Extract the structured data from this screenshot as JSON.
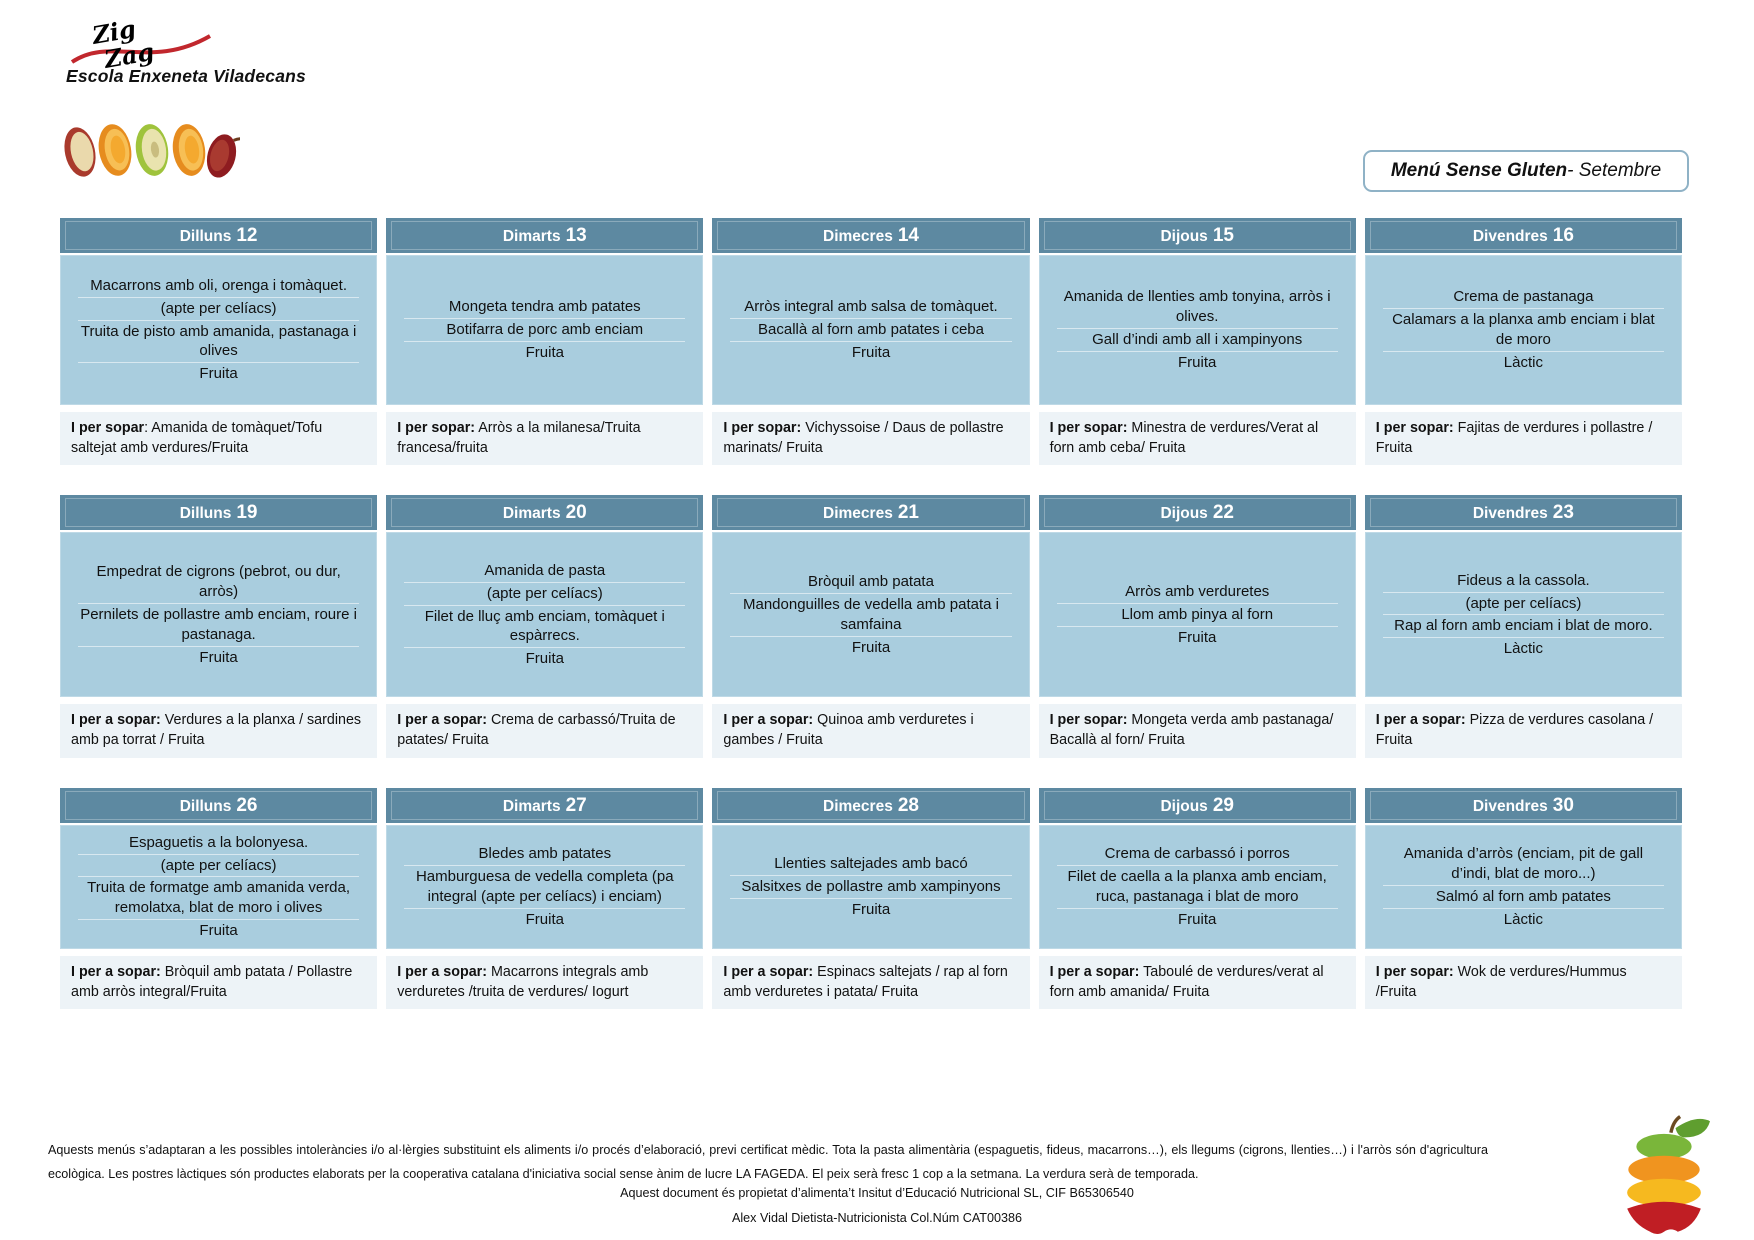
{
  "colors": {
    "header_bg": "#5d89a1",
    "cell_bg": "#a9cdde",
    "dinner_bg": "#edf3f7",
    "accent_border": "#8fb2c6"
  },
  "page": {
    "brand": "ZigZag",
    "school": "Escola Enxeneta Viladecans",
    "title_bold": "Menú Sense Gluten",
    "title_regular": "- Setembre"
  },
  "weeks": [
    {
      "days": [
        {
          "day": "Dilluns",
          "date": "12",
          "dishes": [
            "Macarrons amb oli, orenga i tomàquet.",
            "(apte per celíacs)",
            "Truita de pisto amb amanida, pastanaga i olives",
            "Fruita"
          ],
          "dinner_label": "I per sopar",
          "dinner_text": ": Amanida de tomàquet/Tofu saltejat amb verdures/Fruita"
        },
        {
          "day": "Dimarts",
          "date": "13",
          "dishes": [
            "Mongeta tendra amb patates",
            "Botifarra de porc amb enciam",
            "Fruita"
          ],
          "dinner_label": "I per sopar:",
          "dinner_text": " Arròs a la milanesa/Truita francesa/fruita"
        },
        {
          "day": "Dimecres",
          "date": "14",
          "dishes": [
            "Arròs integral amb salsa de tomàquet.",
            "Bacallà al forn amb patates i ceba",
            "Fruita"
          ],
          "dinner_label": "I per sopar:",
          "dinner_text": " Vichyssoise / Daus de pollastre marinats/ Fruita"
        },
        {
          "day": "Dijous",
          "date": "15",
          "dishes": [
            "Amanida de llenties amb tonyina, arròs i olives.",
            "Gall d’indi amb all i xampinyons",
            "Fruita"
          ],
          "dinner_label": "I per sopar:",
          "dinner_text": " Minestra de verdures/Verat al forn amb ceba/ Fruita"
        },
        {
          "day": "Divendres",
          "date": "16",
          "dishes": [
            "Crema de pastanaga",
            "Calamars a la planxa amb enciam i blat de moro",
            "Làctic"
          ],
          "dinner_label": "I per sopar:",
          "dinner_text": " Fajitas de verdures i pollastre / Fruita"
        }
      ]
    },
    {
      "days": [
        {
          "day": "Dilluns",
          "date": "19",
          "dishes": [
            "Empedrat de cigrons (pebrot, ou dur, arròs)",
            "Pernilets de pollastre amb enciam, roure i pastanaga.",
            "Fruita"
          ],
          "dinner_label": "I per a sopar:",
          "dinner_text": " Verdures a la planxa / sardines amb pa torrat / Fruita"
        },
        {
          "day": "Dimarts",
          "date": "20",
          "dishes": [
            "Amanida de pasta",
            "(apte per celíacs)",
            "Filet de lluç amb enciam, tomàquet i espàrrecs.",
            "Fruita"
          ],
          "dinner_label": "I per a sopar:",
          "dinner_text": " Crema de carbassó/Truita de patates/ Fruita"
        },
        {
          "day": "Dimecres",
          "date": "21",
          "dishes": [
            "Bròquil amb patata",
            "Mandonguilles de vedella amb patata i samfaina",
            "Fruita"
          ],
          "dinner_label": "I per a sopar:",
          "dinner_text": " Quinoa amb verduretes i gambes / Fruita"
        },
        {
          "day": "Dijous",
          "date": "22",
          "dishes": [
            "Arròs amb verduretes",
            "Llom amb pinya al forn",
            "Fruita"
          ],
          "dinner_label": "I per sopar:",
          "dinner_text": " Mongeta verda amb pastanaga/ Bacallà al forn/ Fruita"
        },
        {
          "day": "Divendres",
          "date": "23",
          "dishes": [
            "Fideus a la cassola.",
            "(apte per celíacs)",
            "Rap al forn amb enciam i blat de moro.",
            "Làctic"
          ],
          "dinner_label": "I per a sopar:",
          "dinner_text": " Pizza de verdures casolana / Fruita"
        }
      ]
    },
    {
      "days": [
        {
          "day": "Dilluns",
          "date": "26",
          "dishes": [
            "Espaguetis a la bolonyesa.",
            "(apte per celíacs)",
            "Truita de formatge amb amanida verda, remolatxa, blat de moro i olives",
            "Fruita"
          ],
          "dinner_label": "I per a sopar:",
          "dinner_text": " Bròquil amb patata / Pollastre amb arròs integral/Fruita"
        },
        {
          "day": "Dimarts",
          "date": "27",
          "dishes": [
            "Bledes amb patates",
            "Hamburguesa de vedella completa (pa integral (apte per celíacs) i enciam)",
            "Fruita"
          ],
          "dinner_label": "I per a sopar:",
          "dinner_text": " Macarrons integrals amb verduretes /truita de verdures/ Iogurt"
        },
        {
          "day": "Dimecres",
          "date": "28",
          "dishes": [
            "Llenties saltejades amb bacó",
            "Salsitxes de pollastre amb xampinyons",
            "Fruita"
          ],
          "dinner_label": "I per a sopar:",
          "dinner_text": " Espinacs saltejats / rap al forn amb verduretes i patata/ Fruita"
        },
        {
          "day": "Dijous",
          "date": "29",
          "dishes": [
            "Crema de carbassó i porros",
            "Filet de caella a la planxa amb enciam, ruca, pastanaga i blat de moro",
            "Fruita"
          ],
          "dinner_label": "I per a sopar:",
          "dinner_text": " Taboulé de verdures/verat al forn amb amanida/ Fruita"
        },
        {
          "day": "Divendres",
          "date": "30",
          "dishes": [
            "Amanida d’arròs (enciam, pit de gall d’indi, blat de moro...)",
            "Salmó al forn amb patates",
            "Làctic"
          ],
          "dinner_label": "I per sopar:",
          "dinner_text": " Wok de verdures/Hummus /Fruita"
        }
      ]
    }
  ],
  "footer": {
    "paragraph": "Aquests menús s’adaptaran a les possibles intoleràncies i/o al·lèrgies substituint els aliments i/o procés d’elaboració, previ certificat mèdic. Tota la pasta alimentària (espaguetis, fideus, macarrons…), els llegums (cigrons, llenties…) i l'arròs són d'agricultura ecològica. Les postres làctiques són productes elaborats per la cooperativa catalana d'iniciativa social sense ànim de lucre LA FAGEDA. El peix serà fresc 1 cop a la setmana. La verdura serà de temporada.",
    "line2": "Aquest document és propietat d’alimenta’t Insitut d’Educació Nutricional SL, CIF B65306540",
    "line3": "Alex Vidal Dietista-Nutricionista Col.Núm CAT00386"
  }
}
